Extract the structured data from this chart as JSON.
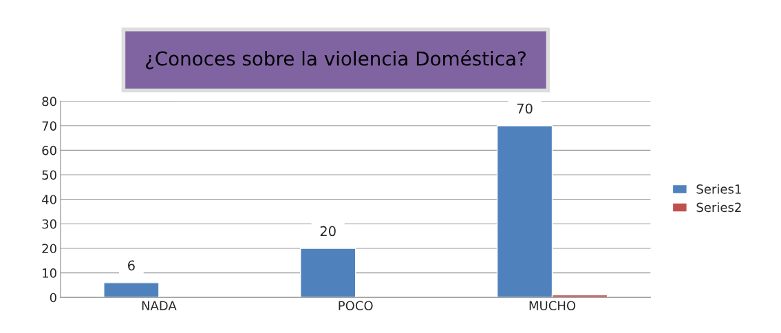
{
  "chart_data": {
    "type": "bar",
    "title": "¿Conoces sobre la violencia Doméstica?",
    "categories": [
      "NADA",
      "POCO",
      "MUCHO"
    ],
    "series": [
      {
        "name": "Series1",
        "color": "#4f81bd",
        "values": [
          6,
          20,
          70
        ],
        "value_labels": [
          "6",
          "20",
          "70"
        ]
      },
      {
        "name": "Series2",
        "color": "#c0504d",
        "values": [
          null,
          null,
          1
        ]
      }
    ],
    "ylim": [
      0,
      80
    ],
    "yticks": [
      0,
      10,
      20,
      30,
      40,
      50,
      60,
      70,
      80
    ],
    "grid": "y",
    "legend": "right"
  }
}
